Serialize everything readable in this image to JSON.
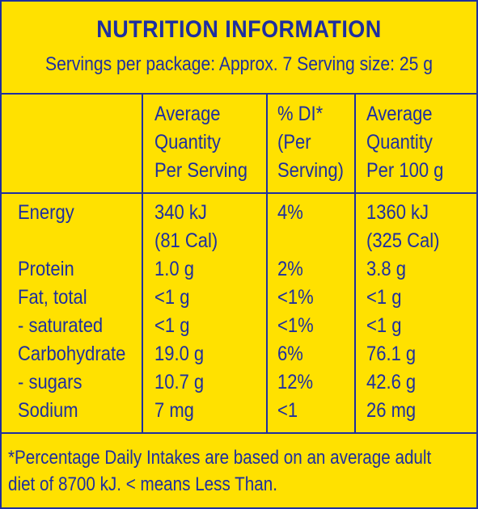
{
  "title": "NUTRITION INFORMATION",
  "servings": "Servings per package: Approx. 7  Serving size: 25 g",
  "columns": [
    [
      "Average",
      "Quantity",
      "Per Serving"
    ],
    [
      "% DI*",
      "(Per",
      "Serving)"
    ],
    [
      "Average",
      "Quantity",
      "Per 100 g"
    ]
  ],
  "rows": [
    {
      "label": [
        "Energy",
        ""
      ],
      "per_serving": [
        "340 kJ",
        "(81 Cal)"
      ],
      "di": [
        "4%",
        ""
      ],
      "per_100g": [
        "1360 kJ",
        "(325 Cal)"
      ]
    },
    {
      "label": [
        "Protein"
      ],
      "per_serving": [
        "1.0 g"
      ],
      "di": [
        "2%"
      ],
      "per_100g": [
        "3.8 g"
      ]
    },
    {
      "label": [
        "Fat, total"
      ],
      "per_serving": [
        "<1 g"
      ],
      "di": [
        "<1%"
      ],
      "per_100g": [
        "<1 g"
      ]
    },
    {
      "label": [
        "- saturated"
      ],
      "per_serving": [
        "<1 g"
      ],
      "di": [
        "<1%"
      ],
      "per_100g": [
        "<1 g"
      ]
    },
    {
      "label": [
        "Carbohydrate"
      ],
      "per_serving": [
        "19.0 g"
      ],
      "di": [
        "6%"
      ],
      "per_100g": [
        "76.1 g"
      ]
    },
    {
      "label": [
        "- sugars"
      ],
      "per_serving": [
        "10.7 g"
      ],
      "di": [
        "12%"
      ],
      "per_100g": [
        "42.6 g"
      ]
    },
    {
      "label": [
        "Sodium"
      ],
      "per_serving": [
        "7 mg"
      ],
      "di": [
        "<1"
      ],
      "per_100g": [
        "26 mg"
      ]
    }
  ],
  "footnote": [
    "*Percentage Daily Intakes are based on an average adult",
    "diet of 8700 kJ. < means Less Than."
  ],
  "colors": {
    "background": "#ffe100",
    "text": "#1e2fa0"
  }
}
